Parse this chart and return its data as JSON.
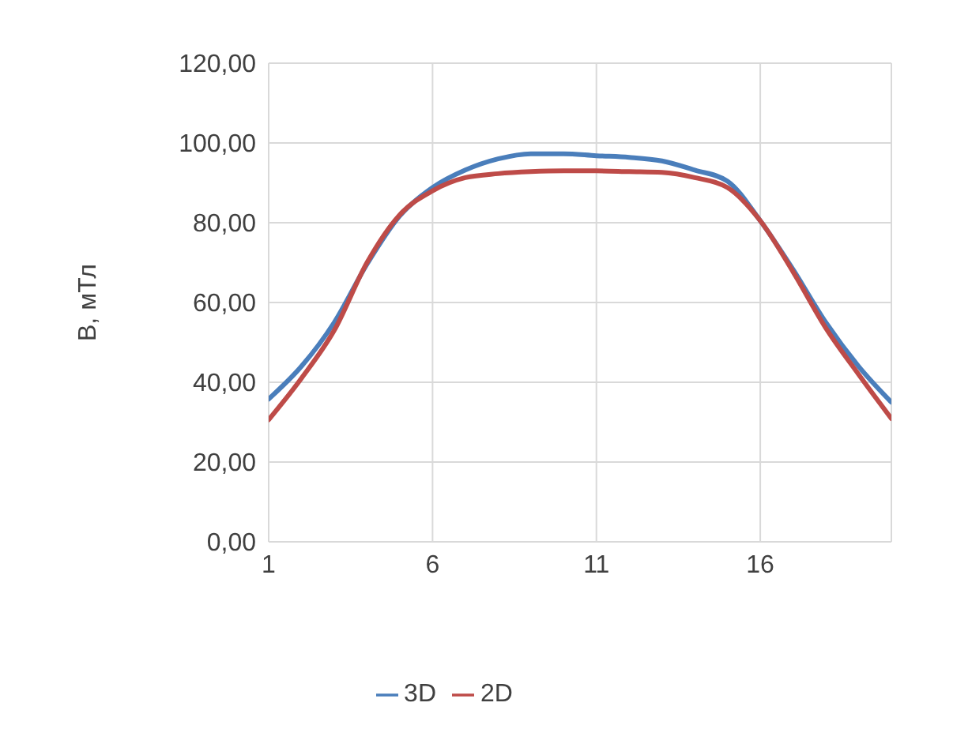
{
  "chart_data": {
    "type": "line",
    "ylabel": "B, мТл",
    "x": [
      1,
      2,
      3,
      4,
      5,
      6,
      7,
      8,
      9,
      10,
      11,
      12,
      13,
      14,
      15,
      16,
      17,
      18,
      19,
      20
    ],
    "xlim": [
      1,
      20
    ],
    "xticks": [
      1,
      6,
      11,
      16
    ],
    "series": [
      {
        "name": "3D",
        "color": "#4a7ebb",
        "values": [
          35.8,
          44,
          55,
          69.6,
          81.7,
          88.8,
          93.2,
          96,
          97.3,
          97.3,
          96.8,
          96.4,
          95.5,
          93.2,
          90.4,
          80.5,
          68.3,
          55,
          44,
          35
        ]
      },
      {
        "name": "2D",
        "color": "#be4b48",
        "values": [
          30.6,
          41,
          53,
          70,
          82,
          88,
          91.3,
          92.3,
          92.8,
          93,
          93,
          92.8,
          92.6,
          91.3,
          88.8,
          80.5,
          67.7,
          53.6,
          42,
          30.9
        ]
      }
    ],
    "ylim": [
      0,
      120
    ],
    "yticks": [
      {
        "value": 0,
        "label": "0,00"
      },
      {
        "value": 20,
        "label": "20,00"
      },
      {
        "value": 40,
        "label": "40,00"
      },
      {
        "value": 60,
        "label": "60,00"
      },
      {
        "value": 80,
        "label": "80,00"
      },
      {
        "value": 100,
        "label": "100,00"
      },
      {
        "value": 120,
        "label": "120,00"
      }
    ],
    "grid": true,
    "legend": "bottom",
    "marker": "none",
    "line_style": "solid"
  }
}
